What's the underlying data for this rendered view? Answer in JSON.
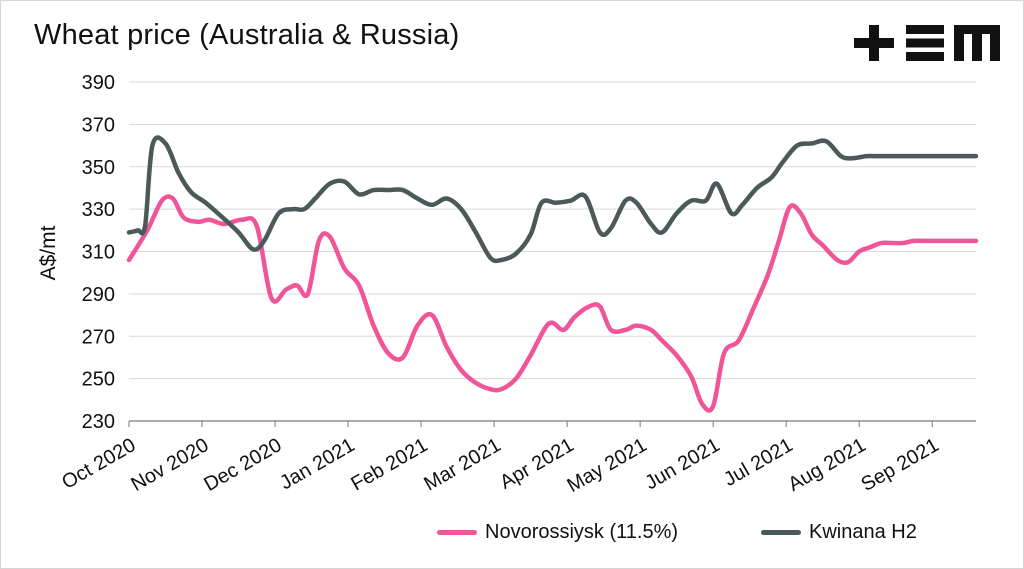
{
  "title": "Wheat price (Australia & Russia)",
  "logo": {
    "name": "tem-logo",
    "text": "+EM"
  },
  "colors": {
    "novorossiysk": "#f0559a",
    "kwinana": "#4b5a58",
    "axis": "#333333"
  },
  "chart_data": {
    "type": "line",
    "title": "Wheat price (Australia & Russia)",
    "ylabel": "A$/mt",
    "xlabel": "",
    "ylim": [
      230,
      390
    ],
    "yticks": [
      230,
      250,
      270,
      290,
      310,
      330,
      350,
      370,
      390
    ],
    "xlim": [
      0,
      11.6
    ],
    "xticks": [
      {
        "pos": 0,
        "label": "Oct 2020"
      },
      {
        "pos": 1,
        "label": "Nov 2020"
      },
      {
        "pos": 2,
        "label": "Dec 2020"
      },
      {
        "pos": 3,
        "label": "Jan 2021"
      },
      {
        "pos": 4,
        "label": "Feb 2021"
      },
      {
        "pos": 5,
        "label": "Mar 2021"
      },
      {
        "pos": 6,
        "label": "Apr 2021"
      },
      {
        "pos": 7,
        "label": "May 2021"
      },
      {
        "pos": 8,
        "label": "Jun 2021"
      },
      {
        "pos": 9,
        "label": "Jul 2021"
      },
      {
        "pos": 10,
        "label": "Aug 2021"
      },
      {
        "pos": 11,
        "label": "Sep 2021"
      }
    ],
    "grid": true,
    "legend_position": "bottom-right",
    "series": [
      {
        "name": "Novorossiysk (11.5%)",
        "color": "#f0559a",
        "x": [
          0,
          0.25,
          0.45,
          0.6,
          0.75,
          0.95,
          1.1,
          1.3,
          1.55,
          1.75,
          1.95,
          2.15,
          2.3,
          2.45,
          2.6,
          2.75,
          2.95,
          3.15,
          3.35,
          3.55,
          3.75,
          3.95,
          4.15,
          4.35,
          4.55,
          4.75,
          4.95,
          5.1,
          5.3,
          5.5,
          5.75,
          5.95,
          6.1,
          6.3,
          6.45,
          6.6,
          6.8,
          6.95,
          7.15,
          7.3,
          7.5,
          7.7,
          7.85,
          8.0,
          8.15,
          8.35,
          8.55,
          8.75,
          8.9,
          9.05,
          9.2,
          9.35,
          9.5,
          9.7,
          9.85,
          10.0,
          10.15,
          10.3,
          10.45,
          10.6,
          10.75,
          10.95,
          11.1,
          11.25,
          11.4,
          11.6
        ],
        "y": [
          306,
          320,
          334,
          335,
          326,
          324,
          325,
          323,
          325,
          322,
          288,
          292,
          294,
          290,
          315,
          317,
          302,
          294,
          275,
          262,
          260,
          275,
          280,
          265,
          254,
          248,
          245,
          245,
          250,
          261,
          276,
          273,
          279,
          284,
          284,
          273,
          273,
          275,
          273,
          268,
          261,
          251,
          238,
          237,
          262,
          268,
          283,
          299,
          315,
          331,
          328,
          318,
          313,
          306,
          305,
          310,
          312,
          314,
          314,
          314,
          315,
          315,
          315,
          315,
          315,
          315
        ]
      },
      {
        "name": "Kwinana H2",
        "color": "#4b5a58",
        "x": [
          0,
          0.12,
          0.22,
          0.32,
          0.5,
          0.68,
          0.85,
          1.05,
          1.25,
          1.5,
          1.7,
          1.85,
          2.05,
          2.25,
          2.4,
          2.55,
          2.75,
          2.95,
          3.15,
          3.35,
          3.55,
          3.75,
          3.95,
          4.15,
          4.35,
          4.55,
          4.75,
          4.95,
          5.1,
          5.3,
          5.5,
          5.65,
          5.85,
          6.05,
          6.25,
          6.45,
          6.6,
          6.8,
          6.95,
          7.15,
          7.3,
          7.5,
          7.7,
          7.9,
          8.05,
          8.25,
          8.4,
          8.6,
          8.8,
          8.95,
          9.15,
          9.35,
          9.55,
          9.75,
          9.9,
          10.1,
          10.25,
          10.4,
          10.55,
          10.7,
          10.85,
          11.0,
          11.2,
          11.4,
          11.6
        ],
        "y": [
          319,
          320,
          322,
          360,
          361,
          347,
          338,
          333,
          327,
          319,
          311,
          315,
          328,
          330,
          330,
          335,
          342,
          343,
          337,
          339,
          339,
          339,
          335,
          332,
          335,
          330,
          319,
          307,
          306,
          309,
          318,
          333,
          333,
          334,
          336,
          319,
          321,
          334,
          333,
          323,
          319,
          328,
          334,
          334,
          342,
          328,
          332,
          340,
          345,
          352,
          360,
          361,
          362,
          355,
          354,
          355,
          355,
          355,
          355,
          355,
          355,
          355,
          355,
          355,
          355
        ]
      }
    ]
  }
}
